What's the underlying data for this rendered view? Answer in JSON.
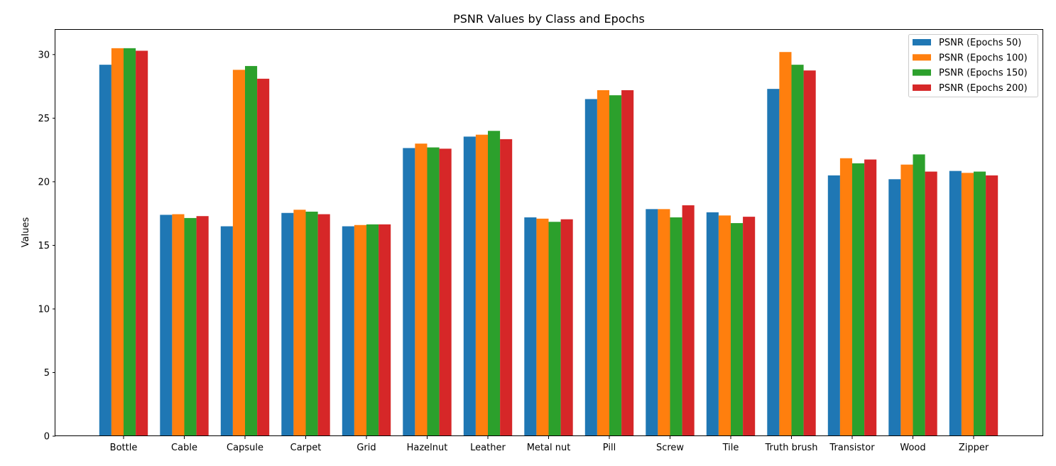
{
  "chart_data": {
    "type": "bar",
    "title": "PSNR Values by Class and Epochs",
    "xlabel": "",
    "ylabel": "Values",
    "ylim": [
      0,
      32
    ],
    "yticks": [
      0,
      5,
      10,
      15,
      20,
      25,
      30
    ],
    "legend_position": "top-right",
    "grid": false,
    "categories": [
      "Bottle",
      "Cable",
      "Capsule",
      "Carpet",
      "Grid",
      "Hazelnut",
      "Leather",
      "Metal nut",
      "Pill",
      "Screw",
      "Tile",
      "Truth brush",
      "Transistor",
      "Wood",
      "Zipper"
    ],
    "series": [
      {
        "name": "PSNR (Epochs 50)",
        "color": "#1f77b4",
        "values": [
          29.2,
          17.4,
          16.5,
          17.55,
          16.5,
          22.65,
          23.55,
          17.2,
          26.5,
          17.85,
          17.6,
          27.3,
          20.5,
          20.2,
          20.85
        ]
      },
      {
        "name": "PSNR (Epochs 100)",
        "color": "#ff7f0e",
        "values": [
          30.5,
          17.45,
          28.8,
          17.8,
          16.6,
          23.0,
          23.7,
          17.1,
          27.2,
          17.85,
          17.35,
          30.2,
          21.85,
          21.35,
          20.7
        ]
      },
      {
        "name": "PSNR (Epochs 150)",
        "color": "#2ca02c",
        "values": [
          30.5,
          17.15,
          29.1,
          17.65,
          16.65,
          22.7,
          24.0,
          16.85,
          26.8,
          17.2,
          16.75,
          29.2,
          21.45,
          22.15,
          20.8
        ]
      },
      {
        "name": "PSNR (Epochs 200)",
        "color": "#d62728",
        "values": [
          30.3,
          17.3,
          28.1,
          17.45,
          16.65,
          22.6,
          23.35,
          17.05,
          27.2,
          18.15,
          17.25,
          28.75,
          21.75,
          20.8,
          20.5
        ]
      }
    ]
  }
}
